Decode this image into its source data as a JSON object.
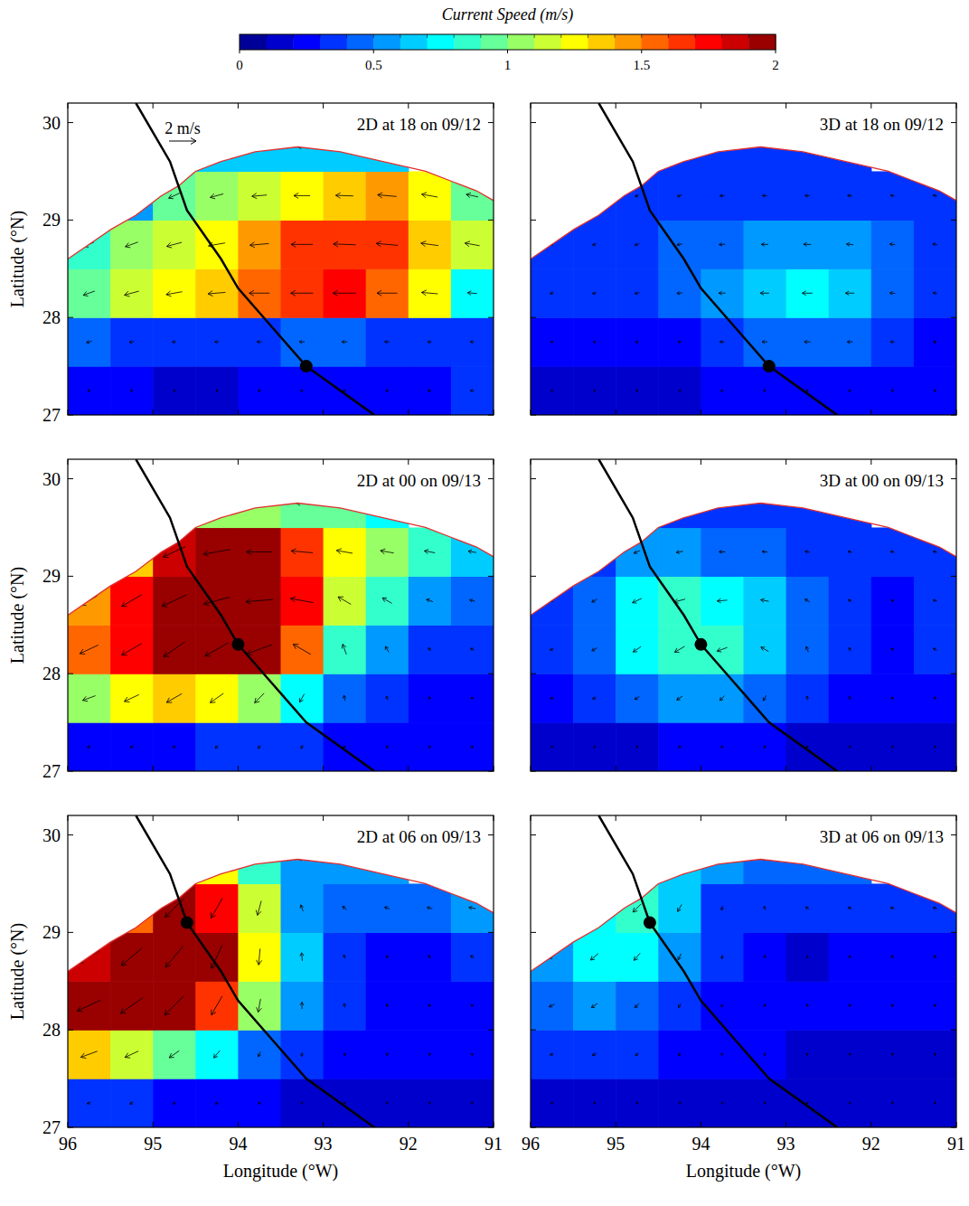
{
  "colorbar": {
    "title": "Current Speed (m/s)",
    "range": [
      0,
      2
    ],
    "ticks": [
      0,
      0.5,
      1,
      1.5,
      2
    ],
    "levels": 20
  },
  "track": {
    "lon": [
      95.2,
      94.8,
      94.6,
      94.2,
      94.0,
      93.6,
      93.2,
      92.4
    ],
    "lat": [
      30.2,
      29.6,
      29.1,
      28.6,
      28.3,
      27.9,
      27.5,
      27.0
    ]
  },
  "coastline": {
    "lon": [
      96,
      95.5,
      95.2,
      94.9,
      94.7,
      94.5,
      94.2,
      93.8,
      93.3,
      92.8,
      92.3,
      91.8,
      91.5,
      91.2,
      91
    ],
    "lat": [
      28.6,
      28.9,
      29.05,
      29.25,
      29.35,
      29.5,
      29.6,
      29.7,
      29.75,
      29.7,
      29.6,
      29.5,
      29.4,
      29.3,
      29.2
    ]
  },
  "chart_data": [
    {
      "type": "heatmap",
      "title": "2D at 18 on 09/12",
      "ylabel": "Latitude (°N)",
      "xlim": [
        96,
        91
      ],
      "ylim": [
        27,
        30.2
      ],
      "xticks": [
        96,
        95,
        94,
        93,
        92,
        91
      ],
      "yticks": [
        27,
        28,
        29,
        30
      ],
      "tick_labels": "y",
      "x": [
        95.75,
        95.25,
        94.75,
        94.25,
        93.75,
        93.25,
        92.75,
        92.25,
        91.75,
        91.25
      ],
      "y": [
        27.25,
        27.75,
        28.25,
        28.75,
        29.25,
        29.75
      ],
      "values": [
        [
          0.2,
          0.2,
          0.15,
          0.15,
          0.2,
          0.2,
          0.2,
          0.2,
          0.25,
          0.3
        ],
        [
          0.4,
          0.35,
          0.3,
          0.3,
          0.35,
          0.4,
          0.4,
          0.35,
          0.3,
          0.3
        ],
        [
          0.9,
          1.1,
          1.2,
          1.3,
          1.5,
          1.65,
          1.7,
          1.5,
          1.2,
          0.7
        ],
        [
          0.8,
          1.0,
          1.15,
          1.25,
          1.4,
          1.6,
          1.65,
          1.6,
          1.3,
          1.1
        ],
        [
          null,
          0.5,
          0.9,
          1.0,
          1.1,
          1.2,
          1.3,
          1.4,
          1.2,
          0.9
        ],
        [
          null,
          null,
          null,
          0.6,
          0.6,
          0.6,
          0.6,
          0.6,
          null,
          null
        ]
      ],
      "directions": [
        [
          180,
          180,
          180,
          180,
          180,
          180,
          180,
          180,
          180,
          180
        ],
        [
          195,
          190,
          185,
          180,
          180,
          180,
          180,
          180,
          180,
          180
        ],
        [
          200,
          195,
          190,
          185,
          180,
          180,
          180,
          180,
          175,
          175
        ],
        [
          205,
          200,
          195,
          190,
          185,
          180,
          178,
          175,
          172,
          170
        ],
        [
          null,
          215,
          205,
          195,
          185,
          180,
          178,
          175,
          170,
          168
        ],
        [
          null,
          null,
          null,
          200,
          185,
          180,
          180,
          178,
          null,
          null
        ]
      ],
      "eye": [
        93.2,
        27.5
      ],
      "reference_vector": {
        "label": "2 m/s",
        "value": 2
      }
    },
    {
      "type": "heatmap",
      "title": "3D at 18 on 09/12",
      "xlim": [
        96,
        91
      ],
      "ylim": [
        27,
        30.2
      ],
      "xticks": [
        96,
        95,
        94,
        93,
        92,
        91
      ],
      "yticks": [
        27,
        28,
        29,
        30
      ],
      "tick_labels": false,
      "x": [
        95.75,
        95.25,
        94.75,
        94.25,
        93.75,
        93.25,
        92.75,
        92.25,
        91.75,
        91.25
      ],
      "y": [
        27.25,
        27.75,
        28.25,
        28.75,
        29.25,
        29.75
      ],
      "values": [
        [
          0.15,
          0.15,
          0.15,
          0.15,
          0.2,
          0.2,
          0.2,
          0.2,
          0.2,
          0.2
        ],
        [
          0.2,
          0.2,
          0.25,
          0.25,
          0.35,
          0.4,
          0.45,
          0.4,
          0.3,
          0.25
        ],
        [
          0.3,
          0.3,
          0.35,
          0.4,
          0.5,
          0.65,
          0.75,
          0.65,
          0.4,
          0.3
        ],
        [
          0.3,
          0.3,
          0.35,
          0.4,
          0.45,
          0.5,
          0.55,
          0.5,
          0.4,
          0.35
        ],
        [
          null,
          0.3,
          0.3,
          0.35,
          0.35,
          0.35,
          0.35,
          0.35,
          0.3,
          0.3
        ],
        [
          null,
          null,
          null,
          0.3,
          0.3,
          0.3,
          0.3,
          0.3,
          null,
          null
        ]
      ],
      "directions": [
        [
          180,
          180,
          180,
          180,
          180,
          180,
          180,
          180,
          180,
          180
        ],
        [
          195,
          190,
          185,
          180,
          180,
          180,
          180,
          180,
          180,
          180
        ],
        [
          200,
          195,
          190,
          185,
          180,
          180,
          180,
          180,
          175,
          175
        ],
        [
          205,
          200,
          195,
          190,
          185,
          180,
          178,
          175,
          172,
          170
        ],
        [
          null,
          215,
          205,
          195,
          185,
          180,
          178,
          175,
          170,
          168
        ],
        [
          null,
          null,
          null,
          200,
          185,
          180,
          180,
          178,
          null,
          null
        ]
      ],
      "eye": [
        93.2,
        27.5
      ]
    },
    {
      "type": "heatmap",
      "title": "2D at 00 on 09/13",
      "ylabel": "Latitude (°N)",
      "xlim": [
        96,
        91
      ],
      "ylim": [
        27,
        30.2
      ],
      "xticks": [
        96,
        95,
        94,
        93,
        92,
        91
      ],
      "yticks": [
        27,
        28,
        29,
        30
      ],
      "tick_labels": "y",
      "x": [
        95.75,
        95.25,
        94.75,
        94.25,
        93.75,
        93.25,
        92.75,
        92.25,
        91.75,
        91.25
      ],
      "y": [
        27.25,
        27.75,
        28.25,
        28.75,
        29.25,
        29.75
      ],
      "values": [
        [
          0.25,
          0.25,
          0.25,
          0.3,
          0.3,
          0.3,
          0.2,
          0.2,
          0.2,
          0.2
        ],
        [
          1.0,
          1.2,
          1.3,
          1.2,
          1.0,
          0.7,
          0.4,
          0.3,
          0.2,
          0.2
        ],
        [
          1.5,
          1.7,
          1.9,
          2.0,
          2.0,
          1.5,
          0.8,
          0.5,
          0.3,
          0.3
        ],
        [
          1.4,
          1.7,
          2.0,
          2.0,
          2.0,
          1.7,
          1.1,
          0.8,
          0.5,
          0.4
        ],
        [
          null,
          1.3,
          1.8,
          2.0,
          1.9,
          1.6,
          1.2,
          1.0,
          0.8,
          0.6
        ],
        [
          null,
          null,
          null,
          1.0,
          1.0,
          0.9,
          0.9,
          0.7,
          null,
          null
        ]
      ],
      "directions": [
        [
          190,
          200,
          210,
          220,
          230,
          240,
          250,
          260,
          270,
          270
        ],
        [
          200,
          205,
          210,
          215,
          225,
          240,
          100,
          110,
          120,
          130
        ],
        [
          205,
          210,
          215,
          210,
          200,
          150,
          110,
          120,
          140,
          150
        ],
        [
          210,
          210,
          205,
          195,
          185,
          170,
          150,
          150,
          160,
          165
        ],
        [
          null,
          215,
          205,
          190,
          180,
          175,
          170,
          170,
          170,
          170
        ],
        [
          null,
          null,
          null,
          190,
          180,
          178,
          178,
          175,
          null,
          null
        ]
      ],
      "eye": [
        94.0,
        28.3
      ]
    },
    {
      "type": "heatmap",
      "title": "3D at 00 on 09/13",
      "xlim": [
        96,
        91
      ],
      "ylim": [
        27,
        30.2
      ],
      "xticks": [
        96,
        95,
        94,
        93,
        92,
        91
      ],
      "yticks": [
        27,
        28,
        29,
        30
      ],
      "tick_labels": false,
      "x": [
        95.75,
        95.25,
        94.75,
        94.25,
        93.75,
        93.25,
        92.75,
        92.25,
        91.75,
        91.25
      ],
      "y": [
        27.25,
        27.75,
        28.25,
        28.75,
        29.25,
        29.75
      ],
      "values": [
        [
          0.15,
          0.15,
          0.15,
          0.2,
          0.2,
          0.2,
          0.15,
          0.15,
          0.15,
          0.15
        ],
        [
          0.25,
          0.3,
          0.4,
          0.5,
          0.5,
          0.45,
          0.3,
          0.25,
          0.2,
          0.2
        ],
        [
          0.3,
          0.45,
          0.7,
          0.85,
          0.8,
          0.65,
          0.45,
          0.3,
          0.25,
          0.3
        ],
        [
          0.3,
          0.45,
          0.75,
          0.85,
          0.75,
          0.6,
          0.4,
          0.3,
          0.2,
          0.3
        ],
        [
          null,
          0.35,
          0.5,
          0.5,
          0.45,
          0.4,
          0.35,
          0.3,
          0.3,
          0.3
        ],
        [
          null,
          null,
          null,
          0.35,
          0.35,
          0.3,
          0.3,
          0.3,
          null,
          null
        ]
      ],
      "directions": [
        [
          190,
          200,
          210,
          220,
          230,
          240,
          250,
          260,
          270,
          270
        ],
        [
          200,
          205,
          210,
          215,
          225,
          240,
          100,
          110,
          120,
          130
        ],
        [
          205,
          210,
          215,
          210,
          200,
          150,
          110,
          120,
          140,
          150
        ],
        [
          210,
          210,
          205,
          195,
          185,
          170,
          150,
          150,
          160,
          165
        ],
        [
          null,
          215,
          205,
          190,
          180,
          175,
          170,
          170,
          170,
          170
        ],
        [
          null,
          null,
          null,
          190,
          180,
          178,
          178,
          175,
          null,
          null
        ]
      ],
      "eye": [
        94.0,
        28.3
      ]
    },
    {
      "type": "heatmap",
      "title": "2D at 06 on 09/13",
      "xlabel": "Longitude (°W)",
      "ylabel": "Latitude (°N)",
      "xlim": [
        96,
        91
      ],
      "ylim": [
        27,
        30.2
      ],
      "xticks": [
        96,
        95,
        94,
        93,
        92,
        91
      ],
      "yticks": [
        27,
        28,
        29,
        30
      ],
      "tick_labels": true,
      "x": [
        95.75,
        95.25,
        94.75,
        94.25,
        93.75,
        93.25,
        92.75,
        92.25,
        91.75,
        91.25
      ],
      "y": [
        27.25,
        27.75,
        28.25,
        28.75,
        29.25,
        29.75
      ],
      "values": [
        [
          0.3,
          0.3,
          0.25,
          0.25,
          0.2,
          0.15,
          0.15,
          0.15,
          0.15,
          0.15
        ],
        [
          1.3,
          1.1,
          0.9,
          0.7,
          0.4,
          0.3,
          0.2,
          0.2,
          0.2,
          0.2
        ],
        [
          1.9,
          2.0,
          2.0,
          1.6,
          1.0,
          0.5,
          0.3,
          0.25,
          0.2,
          0.2
        ],
        [
          1.8,
          2.0,
          2.0,
          1.9,
          1.2,
          0.6,
          0.3,
          0.2,
          0.25,
          0.3
        ],
        [
          null,
          1.5,
          1.9,
          1.7,
          1.1,
          0.5,
          0.4,
          0.4,
          0.4,
          0.5
        ],
        [
          null,
          null,
          null,
          1.2,
          0.8,
          0.5,
          0.5,
          0.5,
          null,
          null
        ]
      ],
      "directions": [
        [
          200,
          210,
          220,
          230,
          240,
          250,
          260,
          270,
          270,
          270
        ],
        [
          200,
          205,
          215,
          230,
          250,
          260,
          270,
          270,
          270,
          270
        ],
        [
          205,
          215,
          225,
          240,
          260,
          90,
          100,
          110,
          120,
          120
        ],
        [
          210,
          220,
          230,
          245,
          265,
          95,
          110,
          130,
          140,
          150
        ],
        [
          null,
          215,
          225,
          240,
          255,
          110,
          140,
          160,
          165,
          170
        ],
        [
          null,
          null,
          null,
          220,
          200,
          170,
          175,
          175,
          null,
          null
        ]
      ],
      "eye": [
        94.6,
        29.1
      ]
    },
    {
      "type": "heatmap",
      "title": "3D at 06 on 09/13",
      "xlabel": "Longitude (°W)",
      "xlim": [
        96,
        91
      ],
      "ylim": [
        27,
        30.2
      ],
      "xticks": [
        96,
        95,
        94,
        93,
        92,
        91
      ],
      "yticks": [
        27,
        28,
        29,
        30
      ],
      "tick_labels": "x",
      "x": [
        95.75,
        95.25,
        94.75,
        94.25,
        93.75,
        93.25,
        92.75,
        92.25,
        91.75,
        91.25
      ],
      "y": [
        27.25,
        27.75,
        28.25,
        28.75,
        29.25,
        29.75
      ],
      "values": [
        [
          0.15,
          0.15,
          0.15,
          0.15,
          0.15,
          0.15,
          0.15,
          0.15,
          0.15,
          0.15
        ],
        [
          0.3,
          0.35,
          0.3,
          0.25,
          0.2,
          0.2,
          0.15,
          0.15,
          0.15,
          0.15
        ],
        [
          0.45,
          0.55,
          0.45,
          0.35,
          0.25,
          0.2,
          0.2,
          0.2,
          0.2,
          0.2
        ],
        [
          0.5,
          0.75,
          0.7,
          0.5,
          0.3,
          0.2,
          0.15,
          0.2,
          0.25,
          0.25
        ],
        [
          null,
          0.7,
          0.85,
          0.6,
          0.35,
          0.3,
          0.3,
          0.3,
          0.3,
          0.3
        ],
        [
          null,
          null,
          null,
          0.6,
          0.5,
          0.4,
          0.4,
          0.4,
          null,
          null
        ]
      ],
      "directions": [
        [
          200,
          210,
          220,
          230,
          240,
          250,
          260,
          270,
          270,
          270
        ],
        [
          200,
          205,
          215,
          230,
          250,
          260,
          270,
          270,
          270,
          270
        ],
        [
          205,
          215,
          225,
          240,
          260,
          90,
          100,
          110,
          120,
          120
        ],
        [
          210,
          220,
          230,
          245,
          265,
          95,
          110,
          130,
          140,
          150
        ],
        [
          null,
          215,
          225,
          240,
          255,
          110,
          140,
          160,
          165,
          170
        ],
        [
          null,
          null,
          null,
          220,
          200,
          170,
          175,
          175,
          null,
          null
        ]
      ],
      "eye": [
        94.6,
        29.1
      ]
    }
  ]
}
